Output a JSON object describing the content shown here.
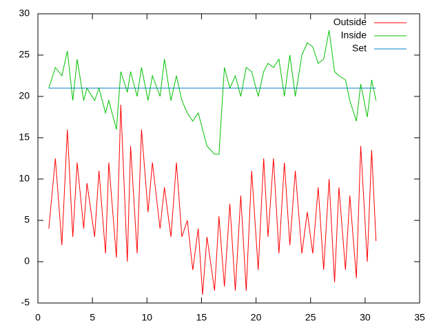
{
  "chart_data": {
    "type": "line",
    "x": [
      1,
      1.6,
      2.2,
      2.7,
      3.2,
      3.6,
      4.2,
      4.5,
      5.2,
      5.6,
      6.2,
      6.5,
      7.2,
      7.6,
      8.2,
      8.5,
      9.1,
      9.5,
      10.1,
      10.5,
      11.2,
      11.6,
      12.2,
      12.7,
      13.2,
      13.7,
      14.2,
      14.7,
      15.1,
      15.5,
      16.2,
      16.6,
      17.1,
      17.6,
      18.1,
      18.6,
      19.1,
      19.6,
      20.2,
      20.7,
      21.1,
      21.6,
      22.1,
      22.6,
      23.1,
      23.6,
      24.2,
      24.7,
      25.2,
      25.7,
      26.2,
      26.7,
      27.2,
      27.6,
      28.2,
      28.6,
      29.2,
      29.6,
      30.2,
      30.6,
      31
    ],
    "series": [
      {
        "name": "Outside",
        "color": "#ff0000",
        "values": [
          4,
          12.5,
          2,
          16,
          3,
          12,
          4,
          9.5,
          3,
          11,
          1,
          12,
          0.5,
          19,
          0,
          14,
          1,
          16,
          6,
          12,
          4,
          9,
          3,
          12,
          3,
          5,
          -1,
          4,
          -4,
          3,
          -3.5,
          5.5,
          -3,
          7,
          -3.5,
          8,
          -3.5,
          11,
          -1,
          12.5,
          3,
          12.5,
          1,
          12,
          2,
          11,
          1,
          6,
          1,
          9,
          -1,
          10,
          -2.5,
          9,
          -1,
          8,
          -2,
          14,
          0,
          13.5,
          2.5
        ]
      },
      {
        "name": "Inside",
        "color": "#00c000",
        "values": [
          21,
          23.5,
          22.5,
          25.5,
          19.5,
          24.5,
          19.5,
          21,
          19.5,
          21,
          18,
          19.5,
          16,
          23,
          20.5,
          23,
          20,
          23.5,
          19.5,
          22.5,
          20,
          24.5,
          19.5,
          22.5,
          19.5,
          18,
          17,
          18,
          16,
          14,
          13,
          13,
          23.5,
          21,
          22.5,
          20,
          23.5,
          23,
          20,
          23,
          24,
          23.5,
          24.5,
          20,
          25,
          20,
          25,
          26.5,
          26,
          24,
          24.5,
          28,
          23,
          22.5,
          22,
          19.5,
          17,
          21.5,
          17.5,
          22,
          19.5
        ]
      },
      {
        "name": "Set",
        "color": "#0080c0",
        "values": [
          21,
          21,
          21,
          21,
          21,
          21,
          21,
          21,
          21,
          21,
          21,
          21,
          21,
          21,
          21,
          21,
          21,
          21,
          21,
          21,
          21,
          21,
          21,
          21,
          21,
          21,
          21,
          21,
          21,
          21,
          21,
          21,
          21,
          21,
          21,
          21,
          21,
          21,
          21,
          21,
          21,
          21,
          21,
          21,
          21,
          21,
          21,
          21,
          21,
          21,
          21,
          21,
          21,
          21,
          21,
          21,
          21,
          21,
          21,
          21,
          21
        ]
      }
    ],
    "xlim": [
      0,
      35
    ],
    "xticks": [
      0,
      5,
      10,
      15,
      20,
      25,
      30,
      35
    ],
    "ylim": [
      -5,
      30
    ],
    "yticks": [
      -5,
      0,
      5,
      10,
      15,
      20,
      25,
      30
    ],
    "legend": "top-right"
  }
}
